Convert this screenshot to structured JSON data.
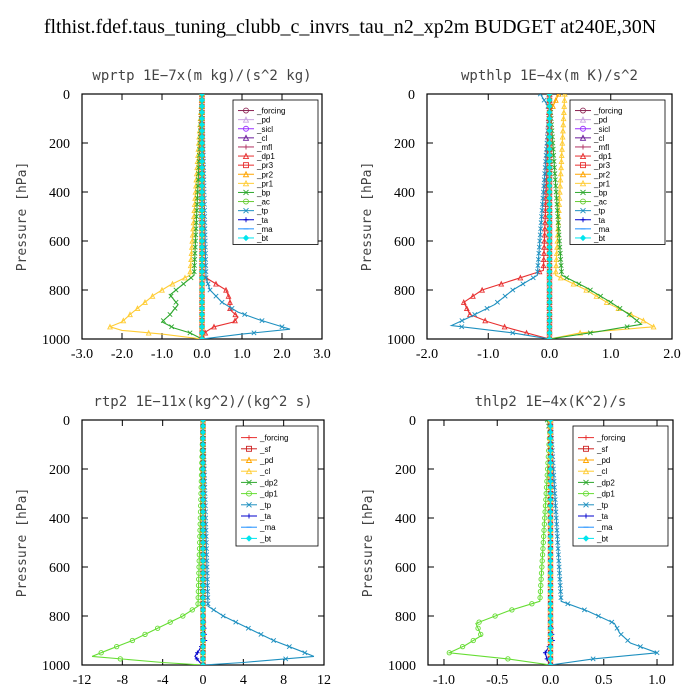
{
  "title": "flthist.fdef.taus_tuning_clubb_c_invrs_tau_n2_xp2m  BUDGET at240E,30N",
  "chart_data": [
    {
      "type": "line",
      "title": "wprtp  1E−7x(m kg)/(s^2 kg)",
      "ylabel": "Pressure [hPa]",
      "xlim": [
        -3,
        3
      ],
      "ylim": [
        1000,
        0
      ],
      "xticks": [
        -3,
        -2,
        -1,
        0,
        1,
        2,
        3
      ],
      "xtick_labels": [
        "-3.0",
        "-2.0",
        "-1.0",
        "0.0",
        "1.0",
        "2.0",
        "3.0"
      ],
      "yticks": [
        0,
        200,
        400,
        600,
        800,
        1000
      ],
      "ytick_labels": [
        "0",
        "200",
        "400",
        "600",
        "800",
        "1000"
      ],
      "legend_position": "top-right",
      "series": [
        {
          "name": "_forcing",
          "color": "#8B2252",
          "marker": "circle",
          "p": [
            0,
            1000
          ],
          "v": [
            0,
            0
          ]
        },
        {
          "name": "_pd",
          "color": "#C8A2E0",
          "marker": "triangle",
          "p": [
            0,
            1000
          ],
          "v": [
            0,
            0
          ]
        },
        {
          "name": "_sicl",
          "color": "#9B30FF",
          "marker": "circle",
          "p": [
            0,
            1000
          ],
          "v": [
            0,
            0
          ]
        },
        {
          "name": "_cl",
          "color": "#6A1B9A",
          "marker": "triangle",
          "p": [
            0,
            1000
          ],
          "v": [
            0,
            0
          ]
        },
        {
          "name": "_mfl",
          "color": "#B03060",
          "marker": "plus",
          "p": [
            0,
            1000
          ],
          "v": [
            0,
            0
          ]
        },
        {
          "name": "_dp1",
          "color": "#E83030",
          "marker": "triangle",
          "p": [
            0,
            740,
            770,
            800,
            840,
            880,
            910,
            930,
            950,
            970,
            1000
          ],
          "v": [
            0,
            0,
            0.3,
            0.6,
            0.7,
            0.7,
            0.9,
            0.8,
            0.3,
            0.1,
            0
          ]
        },
        {
          "name": "_pr3",
          "color": "#E83030",
          "marker": "square",
          "p": [
            0,
            1000
          ],
          "v": [
            0,
            0
          ]
        },
        {
          "name": "_pr2",
          "color": "#FFA500",
          "marker": "triangle",
          "p": [
            0,
            1000
          ],
          "v": [
            0,
            0
          ]
        },
        {
          "name": "_pr1",
          "color": "#FFCC33",
          "marker": "triangle",
          "p": [
            0,
            740,
            780,
            820,
            860,
            900,
            930,
            950,
            965,
            980,
            1000
          ],
          "v": [
            0,
            -0.3,
            -0.8,
            -1.2,
            -1.5,
            -1.8,
            -2.0,
            -2.3,
            -2.0,
            -1.0,
            0
          ]
        },
        {
          "name": "_bp",
          "color": "#2EA82E",
          "marker": "x",
          "p": [
            0,
            740,
            780,
            820,
            860,
            900,
            930,
            955,
            975,
            1000
          ],
          "v": [
            0,
            -0.2,
            -0.5,
            -0.8,
            -0.6,
            -0.8,
            -1.0,
            -0.7,
            -0.3,
            0
          ]
        },
        {
          "name": "_ac",
          "color": "#66CC33",
          "marker": "circle",
          "p": [
            0,
            1000
          ],
          "v": [
            0,
            0
          ]
        },
        {
          "name": "_tp",
          "color": "#1E90C0",
          "marker": "x",
          "p": [
            0,
            750,
            800,
            850,
            890,
            920,
            945,
            960,
            980,
            1000
          ],
          "v": [
            0,
            0.1,
            0.2,
            0.5,
            0.9,
            1.4,
            1.9,
            2.2,
            1.0,
            0
          ]
        },
        {
          "name": "_ta",
          "color": "#0000CD",
          "marker": "plus",
          "p": [
            0,
            1000
          ],
          "v": [
            0,
            0
          ]
        },
        {
          "name": "_ma",
          "color": "#1E90FF",
          "marker": "dash",
          "p": [
            0,
            1000
          ],
          "v": [
            0,
            0
          ]
        },
        {
          "name": "_bt",
          "color": "#00E5EE",
          "marker": "diamond",
          "p": [
            0,
            1000
          ],
          "v": [
            0,
            0
          ]
        }
      ]
    },
    {
      "type": "line",
      "title": "wpthlp  1E−4x(m K)/s^2",
      "ylabel": "Pressure [hPa]",
      "xlim": [
        -2,
        2
      ],
      "ylim": [
        1000,
        0
      ],
      "xticks": [
        -2,
        -1,
        0,
        1,
        2
      ],
      "xtick_labels": [
        "-2.0",
        "-1.0",
        "0.0",
        "1.0",
        "2.0"
      ],
      "yticks": [
        0,
        200,
        400,
        600,
        800,
        1000
      ],
      "ytick_labels": [
        "0",
        "200",
        "400",
        "600",
        "800",
        "1000"
      ],
      "legend_position": "top-right",
      "series": [
        {
          "name": "_forcing",
          "color": "#8B2252",
          "marker": "circle",
          "p": [
            0,
            1000
          ],
          "v": [
            0,
            0
          ]
        },
        {
          "name": "_pd",
          "color": "#C8A2E0",
          "marker": "triangle",
          "p": [
            0,
            1000
          ],
          "v": [
            0,
            0
          ]
        },
        {
          "name": "_sicl",
          "color": "#9B30FF",
          "marker": "circle",
          "p": [
            0,
            1000
          ],
          "v": [
            0,
            0
          ]
        },
        {
          "name": "_cl",
          "color": "#6A1B9A",
          "marker": "triangle",
          "p": [
            0,
            1000
          ],
          "v": [
            0,
            0
          ]
        },
        {
          "name": "_mfl",
          "color": "#B03060",
          "marker": "plus",
          "p": [
            0,
            1000
          ],
          "v": [
            0,
            0
          ]
        },
        {
          "name": "_dp1",
          "color": "#E83030",
          "marker": "triangle",
          "p": [
            0,
            720,
            760,
            800,
            850,
            900,
            930,
            960,
            1000
          ],
          "v": [
            0,
            -0.1,
            -0.6,
            -1.1,
            -1.4,
            -1.3,
            -1.0,
            -0.6,
            0
          ]
        },
        {
          "name": "_pr3",
          "color": "#E83030",
          "marker": "square",
          "p": [
            0,
            1000
          ],
          "v": [
            0,
            0
          ]
        },
        {
          "name": "_pr2",
          "color": "#FFA500",
          "marker": "triangle",
          "p": [
            0,
            80,
            1000
          ],
          "v": [
            0.15,
            0,
            0
          ]
        },
        {
          "name": "_pr1",
          "color": "#FFCC33",
          "marker": "triangle",
          "p": [
            0,
            740,
            800,
            860,
            920,
            950,
            975,
            1000
          ],
          "v": [
            0.25,
            0.1,
            0.6,
            1.0,
            1.5,
            1.7,
            0.5,
            0
          ]
        },
        {
          "name": "_bp",
          "color": "#2EA82E",
          "marker": "x",
          "p": [
            0,
            740,
            790,
            850,
            900,
            940,
            970,
            1000
          ],
          "v": [
            0,
            0.2,
            0.6,
            1.0,
            1.3,
            1.5,
            0.8,
            0
          ]
        },
        {
          "name": "_ac",
          "color": "#66CC33",
          "marker": "circle",
          "p": [
            0,
            1000
          ],
          "v": [
            0,
            0
          ]
        },
        {
          "name": "_tp",
          "color": "#1E90C0",
          "marker": "x",
          "p": [
            0,
            60,
            740,
            800,
            860,
            910,
            945,
            975,
            1000
          ],
          "v": [
            -0.15,
            0,
            -0.2,
            -0.6,
            -0.9,
            -1.3,
            -1.6,
            -0.6,
            0
          ]
        },
        {
          "name": "_ta",
          "color": "#0000CD",
          "marker": "plus",
          "p": [
            0,
            1000
          ],
          "v": [
            0,
            0
          ]
        },
        {
          "name": "_ma",
          "color": "#1E90FF",
          "marker": "dash",
          "p": [
            0,
            1000
          ],
          "v": [
            0,
            0
          ]
        },
        {
          "name": "_bt",
          "color": "#00E5EE",
          "marker": "diamond",
          "p": [
            0,
            1000
          ],
          "v": [
            0,
            0
          ]
        }
      ]
    },
    {
      "type": "line",
      "title": "rtp2  1E−11x(kg^2)/(kg^2 s)",
      "ylabel": "Pressure [hPa]",
      "xlim": [
        -12,
        12
      ],
      "ylim": [
        1000,
        0
      ],
      "xticks": [
        -12,
        -8,
        -4,
        0,
        4,
        8,
        12
      ],
      "xtick_labels": [
        "-12",
        "-8",
        "-4",
        "0",
        "4",
        "8",
        "12"
      ],
      "yticks": [
        0,
        200,
        400,
        600,
        800,
        1000
      ],
      "ytick_labels": [
        "0",
        "200",
        "400",
        "600",
        "800",
        "1000"
      ],
      "legend_position": "top-right",
      "series": [
        {
          "name": "_forcing",
          "color": "#E83030",
          "marker": "plus",
          "p": [
            0,
            1000
          ],
          "v": [
            0,
            0
          ]
        },
        {
          "name": "_sf",
          "color": "#CC2222",
          "marker": "square",
          "p": [
            0,
            1000
          ],
          "v": [
            0,
            0
          ]
        },
        {
          "name": "_pd",
          "color": "#FFA500",
          "marker": "triangle",
          "p": [
            0,
            1000
          ],
          "v": [
            0,
            0
          ]
        },
        {
          "name": "_cl",
          "color": "#FFCC33",
          "marker": "triangle",
          "p": [
            0,
            1000
          ],
          "v": [
            0,
            0
          ]
        },
        {
          "name": "_dp2",
          "color": "#2EA82E",
          "marker": "x",
          "p": [
            0,
            1000
          ],
          "v": [
            0,
            0
          ]
        },
        {
          "name": "_dp1",
          "color": "#66DD33",
          "marker": "circle",
          "p": [
            0,
            760,
            800,
            850,
            900,
            940,
            965,
            990,
            1000
          ],
          "v": [
            0,
            -0.5,
            -2.0,
            -4.5,
            -7.0,
            -9.5,
            -11.0,
            -4.0,
            0
          ]
        },
        {
          "name": "_tp",
          "color": "#1E90C0",
          "marker": "x",
          "p": [
            0,
            760,
            800,
            850,
            900,
            940,
            965,
            990,
            1000
          ],
          "v": [
            0,
            0.5,
            2.0,
            4.5,
            7.0,
            9.5,
            11.0,
            4.0,
            0
          ]
        },
        {
          "name": "_ta",
          "color": "#0000CD",
          "marker": "plus",
          "p": [
            0,
            760,
            830,
            900,
            940,
            965,
            990,
            1000
          ],
          "v": [
            0,
            0,
            0.1,
            0.2,
            -0.4,
            -0.8,
            -0.3,
            0
          ]
        },
        {
          "name": "_ma",
          "color": "#1E90FF",
          "marker": "dash",
          "p": [
            0,
            1000
          ],
          "v": [
            0,
            0
          ]
        },
        {
          "name": "_bt",
          "color": "#00E5EE",
          "marker": "diamond",
          "p": [
            0,
            1000
          ],
          "v": [
            0,
            0
          ]
        }
      ]
    },
    {
      "type": "line",
      "title": "thlp2  1E−4x(K^2)/s",
      "ylabel": "Pressure [hPa]",
      "xlim": [
        -1.15,
        1.15
      ],
      "ylim": [
        1000,
        0
      ],
      "xticks": [
        -1,
        -0.5,
        0,
        0.5,
        1
      ],
      "xtick_labels": [
        "-1.0",
        "-0.5",
        "0.0",
        "0.5",
        "1.0"
      ],
      "yticks": [
        0,
        200,
        400,
        600,
        800,
        1000
      ],
      "ytick_labels": [
        "0",
        "200",
        "400",
        "600",
        "800",
        "1000"
      ],
      "legend_position": "top-right",
      "series": [
        {
          "name": "_forcing",
          "color": "#E83030",
          "marker": "plus",
          "p": [
            0,
            1000
          ],
          "v": [
            0,
            0
          ]
        },
        {
          "name": "_sf",
          "color": "#CC2222",
          "marker": "square",
          "p": [
            0,
            1000
          ],
          "v": [
            0,
            0
          ]
        },
        {
          "name": "_pd",
          "color": "#FFA500",
          "marker": "triangle",
          "p": [
            0,
            1000
          ],
          "v": [
            0,
            0
          ]
        },
        {
          "name": "_cl",
          "color": "#FFCC33",
          "marker": "triangle",
          "p": [
            0,
            1000
          ],
          "v": [
            0,
            0
          ]
        },
        {
          "name": "_dp2",
          "color": "#2EA82E",
          "marker": "x",
          "p": [
            0,
            60,
            1000
          ],
          "v": [
            -0.03,
            0,
            0
          ]
        },
        {
          "name": "_dp1",
          "color": "#66DD33",
          "marker": "circle",
          "p": [
            0,
            740,
            780,
            830,
            880,
            920,
            950,
            975,
            1000
          ],
          "v": [
            0,
            -0.1,
            -0.4,
            -0.7,
            -0.65,
            -0.8,
            -0.95,
            -0.4,
            0
          ]
        },
        {
          "name": "_tp",
          "color": "#1E90C0",
          "marker": "x",
          "p": [
            0,
            740,
            780,
            830,
            870,
            910,
            950,
            975,
            1000
          ],
          "v": [
            0,
            0.1,
            0.35,
            0.6,
            0.65,
            0.75,
            1.0,
            0.4,
            0
          ]
        },
        {
          "name": "_ta",
          "color": "#0000CD",
          "marker": "plus",
          "p": [
            0,
            800,
            900,
            950,
            980,
            1000
          ],
          "v": [
            0,
            0,
            0.02,
            -0.05,
            -0.03,
            0
          ]
        },
        {
          "name": "_ma",
          "color": "#1E90FF",
          "marker": "dash",
          "p": [
            0,
            1000
          ],
          "v": [
            0,
            0
          ]
        },
        {
          "name": "_bt",
          "color": "#00E5EE",
          "marker": "diamond",
          "p": [
            0,
            1000
          ],
          "v": [
            0,
            0
          ]
        }
      ]
    }
  ]
}
